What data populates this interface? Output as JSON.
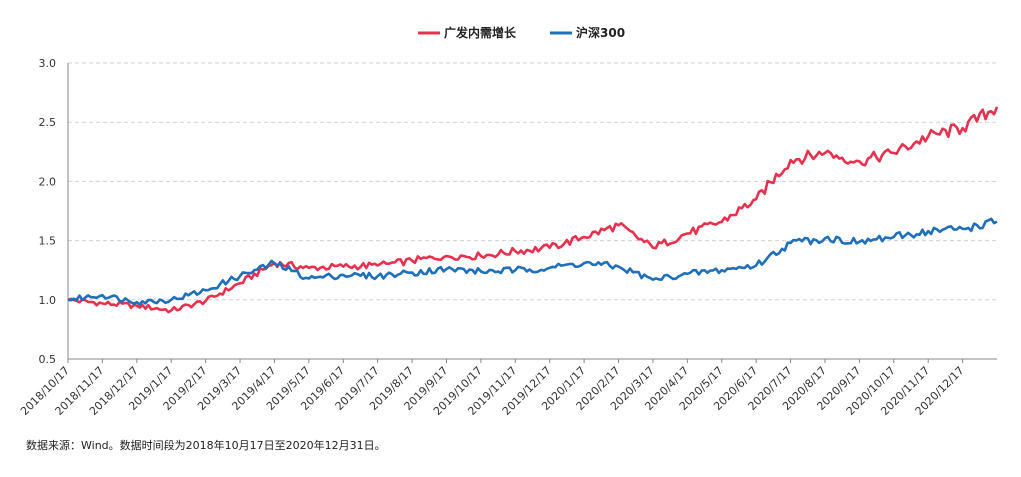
{
  "chart_data": {
    "type": "line",
    "title": "",
    "xlabel": "",
    "ylabel": "",
    "ylim": [
      0.5,
      3.0
    ],
    "yticks": [
      "3.0",
      "2.5",
      "2.0",
      "1.5",
      "1.0",
      "0.5"
    ],
    "ytick_values": [
      3.0,
      2.5,
      2.0,
      1.5,
      1.0,
      0.5
    ],
    "grid": "horizontal dashed",
    "legend_position": "top-center",
    "x": [
      "2018/10/17",
      "2018/11/17",
      "2018/12/17",
      "2019/1/17",
      "2019/2/17",
      "2019/3/17",
      "2019/4/17",
      "2019/5/17",
      "2019/6/17",
      "2019/7/17",
      "2019/8/17",
      "2019/9/17",
      "2019/10/17",
      "2019/11/17",
      "2019/12/17",
      "2020/1/17",
      "2020/2/17",
      "2020/3/17",
      "2020/4/17",
      "2020/5/17",
      "2020/6/17",
      "2020/7/17",
      "2020/8/17",
      "2020/9/17",
      "2020/10/17",
      "2020/11/17",
      "2020/12/17"
    ],
    "series": [
      {
        "name": "广发内需增长",
        "color": "#e8314f",
        "values": [
          1.0,
          0.97,
          0.95,
          0.91,
          0.99,
          1.14,
          1.31,
          1.27,
          1.28,
          1.29,
          1.33,
          1.37,
          1.37,
          1.41,
          1.44,
          1.53,
          1.63,
          1.44,
          1.56,
          1.66,
          1.85,
          2.18,
          2.24,
          2.17,
          2.24,
          2.38,
          2.45
        ],
        "end_value": 2.63
      },
      {
        "name": "沪深300",
        "color": "#1f6fba",
        "values": [
          1.0,
          1.04,
          0.98,
          1.0,
          1.08,
          1.2,
          1.31,
          1.18,
          1.21,
          1.2,
          1.23,
          1.26,
          1.24,
          1.25,
          1.27,
          1.31,
          1.28,
          1.17,
          1.22,
          1.25,
          1.29,
          1.48,
          1.52,
          1.49,
          1.53,
          1.58,
          1.6
        ],
        "end_value": 1.66
      }
    ]
  },
  "legend": {
    "series1_label": "广发内需增长",
    "series2_label": "沪深300"
  },
  "footnote": "数据来源：Wind。数据时间段为2018年10月17日至2020年12月31日。"
}
